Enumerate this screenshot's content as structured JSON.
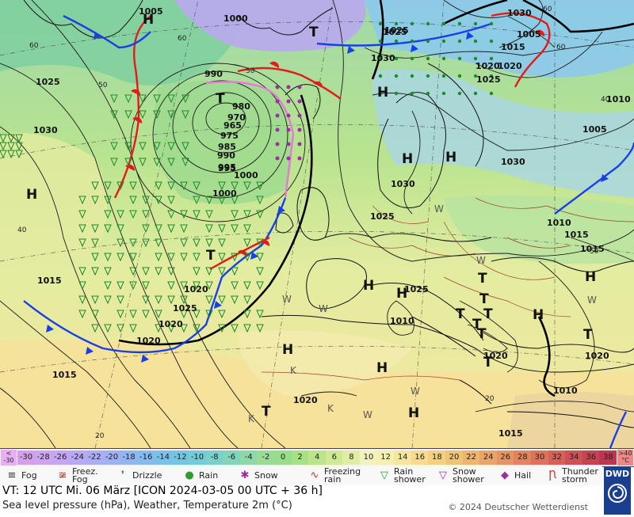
{
  "map": {
    "isobars": [
      "1005",
      "1000",
      "1025",
      "1030",
      "1025",
      "1030",
      "1000",
      "995",
      "990",
      "980",
      "970",
      "965",
      "975",
      "985",
      "990",
      "995",
      "1000",
      "1025",
      "1030",
      "1025",
      "1030",
      "1005",
      "1010",
      "1015",
      "1020",
      "1025",
      "1020",
      "1020",
      "1015",
      "1025",
      "1010",
      "1005",
      "1015",
      "1020",
      "1010",
      "1015",
      "1015",
      "1020",
      "1020",
      "1020",
      "1015",
      "1010",
      "1030",
      "1025",
      "1020"
    ],
    "pressure_centers": [
      "H",
      "T",
      "H",
      "T",
      "H",
      "H",
      "H",
      "T",
      "H",
      "H",
      "T",
      "H",
      "H",
      "T",
      "T",
      "T",
      "T",
      "T",
      "T",
      "H",
      "T",
      "H",
      "H",
      "T"
    ],
    "temperatures": [
      "60",
      "60",
      "50",
      "40",
      "50",
      "60",
      "40",
      "20",
      "20",
      "60",
      "50"
    ],
    "weather_letters": [
      "W",
      "W",
      "W",
      "K",
      "K",
      "W",
      "K",
      "W",
      "W",
      "W"
    ]
  },
  "scale": {
    "low_label": [
      "<",
      "-30"
    ],
    "values": [
      "-30",
      "-28",
      "-26",
      "-24",
      "-22",
      "-20",
      "-18",
      "-16",
      "-14",
      "-12",
      "-10",
      "-8",
      "-6",
      "-4",
      "-2",
      "0",
      "2",
      "4",
      "6",
      "8",
      "10",
      "12",
      "14",
      "16",
      "18",
      "20",
      "22",
      "24",
      "26",
      "28",
      "30",
      "32",
      "34",
      "36",
      "38"
    ],
    "colors": [
      "#d4a0ec",
      "#cfa4f2",
      "#c4a6f3",
      "#b8a9f4",
      "#adacf4",
      "#9fb1f3",
      "#92b6f2",
      "#86bbef",
      "#7bc0ea",
      "#73c5e3",
      "#75cbd9",
      "#7bd0cb",
      "#83d4ba",
      "#8dd8a8",
      "#98dc96",
      "#96de8a",
      "#a8e184",
      "#bce58a",
      "#cfe995",
      "#e1eda3",
      "#f2f3bc",
      "#f6efb0",
      "#f7e6a0",
      "#f6dc90",
      "#f4d083",
      "#f1c378",
      "#edb56f",
      "#e9a569",
      "#e59564",
      "#e0855f",
      "#da745b",
      "#d36358",
      "#cc5355",
      "#c54452",
      "#bd3650"
    ],
    "unit_label": [
      ">40",
      "°C"
    ]
  },
  "legend": {
    "items": [
      {
        "label": "Fog",
        "icon": "fog-icon",
        "symbol": "≡",
        "color": "#333333"
      },
      {
        "label": "Freez. Fog",
        "icon": "freezing-fog-icon",
        "symbol": "≆",
        "color": "#c0392b"
      },
      {
        "label": "Drizzle",
        "icon": "drizzle-icon",
        "symbol": "❜",
        "color": "#2e9c2e"
      },
      {
        "label": "Rain",
        "icon": "rain-icon",
        "symbol": "●",
        "color": "#2e9c2e"
      },
      {
        "label": "Snow",
        "icon": "snow-icon",
        "symbol": "✱",
        "color": "#9b2fa0"
      },
      {
        "label": "Freezing rain",
        "icon": "freezing-rain-icon",
        "symbol": "∿",
        "color": "#c0392b"
      },
      {
        "label": "Rain shower",
        "icon": "rain-shower-icon",
        "symbol": "▽",
        "color": "#2e9c2e"
      },
      {
        "label": "Snow shower",
        "icon": "snow-shower-icon",
        "symbol": "▽",
        "color": "#9b2fa0"
      },
      {
        "label": "Hail",
        "icon": "hail-icon",
        "symbol": "◆",
        "color": "#9b2fa0"
      },
      {
        "label": "Thunder storm",
        "icon": "thunderstorm-icon",
        "symbol": "Ꞃ",
        "color": "#c0392b"
      }
    ]
  },
  "info": {
    "valid_time": "VT: 12 UTC Mi.  06 März [ICON 2024-03-05  00 UTC + 36 h]",
    "subtitle": "Sea level pressure (hPa), Weather, Temperature 2m (°C)",
    "copyright": "© 2024 Deutscher Wetterdienst"
  },
  "brand": {
    "name": "DWD"
  }
}
